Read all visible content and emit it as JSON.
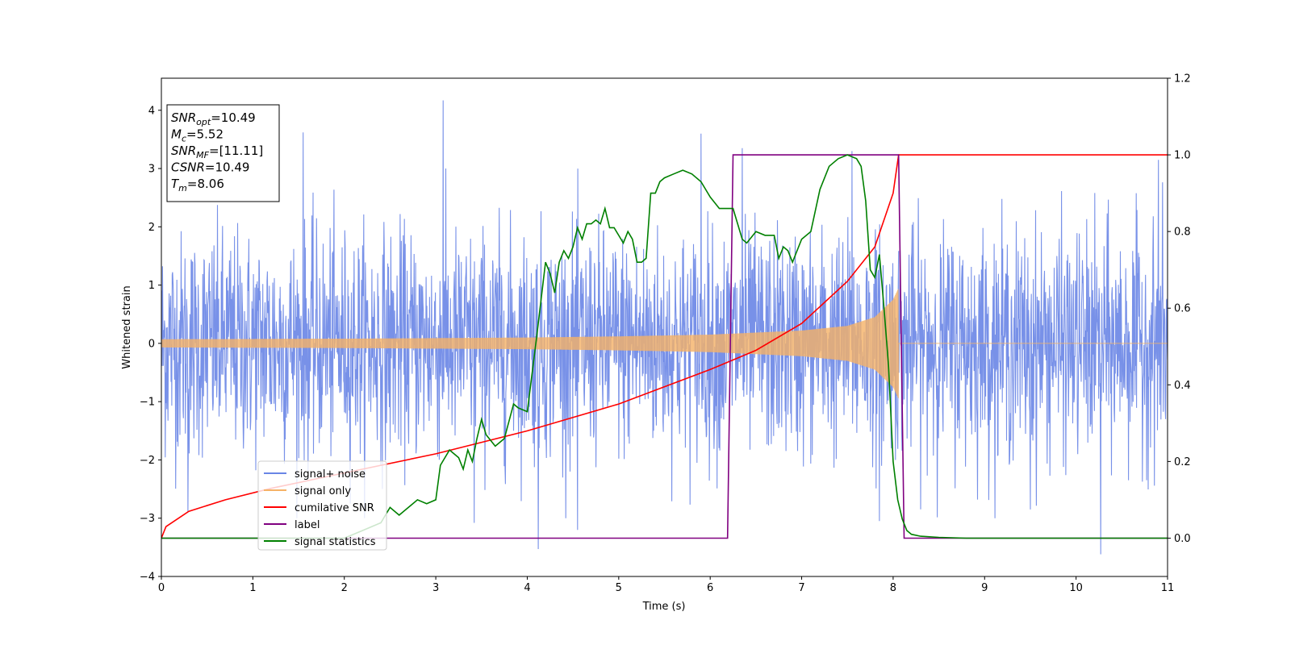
{
  "chart_data": {
    "type": "line",
    "xlabel": "Time (s)",
    "ylabel": "Whitened strain",
    "y2label": "",
    "xlim": [
      0,
      11
    ],
    "ylim": [
      -4,
      4.55
    ],
    "y2lim": [
      -0.1,
      1.2
    ],
    "x_ticks": [
      "0",
      "1",
      "2",
      "3",
      "4",
      "5",
      "6",
      "7",
      "8",
      "9",
      "10",
      "11"
    ],
    "y_ticks": [
      "−4",
      "−3",
      "−2",
      "−1",
      "0",
      "1",
      "2",
      "3",
      "4"
    ],
    "y2_ticks": [
      "0.0",
      "0.2",
      "0.4",
      "0.6",
      "0.8",
      "1.0",
      "1.2"
    ],
    "grid": false,
    "legend_placement": "lower-left",
    "info_box": [
      {
        "name": "SNR",
        "sub": "opt",
        "value": "=10.49"
      },
      {
        "name": "M",
        "sub": "c",
        "value": "=5.52"
      },
      {
        "name": "SNR",
        "sub": "MF",
        "value": "=[11.11]"
      },
      {
        "name": "CSNR",
        "sub": "",
        "value": "=10.49"
      },
      {
        "name": "T",
        "sub": "m",
        "value": "=8.06"
      }
    ],
    "series": [
      {
        "name": "signal+ noise",
        "color": "#6985e6",
        "axis": "left",
        "description": "noise band roughly between -2 and 2 with spikes",
        "spikes": [
          [
            3.08,
            4.17
          ],
          [
            1.55,
            3.62
          ],
          [
            5.9,
            3.6
          ],
          [
            6.35,
            3.35
          ],
          [
            7.55,
            3.3
          ],
          [
            10.9,
            3.15
          ],
          [
            4.12,
            -3.53
          ],
          [
            10.27,
            -3.62
          ],
          [
            4.55,
            -3.2
          ],
          [
            3.42,
            -3.08
          ],
          [
            0.29,
            -2.9
          ],
          [
            7.85,
            -3.05
          ],
          [
            9.5,
            -2.85
          ]
        ]
      },
      {
        "name": "signal only",
        "color": "#f5b266",
        "axis": "left",
        "description": "chirp with growing amplitude until merger at 8.06 s",
        "envelope": [
          [
            0,
            0.07
          ],
          [
            2,
            0.08
          ],
          [
            4,
            0.1
          ],
          [
            5,
            0.12
          ],
          [
            6,
            0.15
          ],
          [
            7,
            0.22
          ],
          [
            7.5,
            0.3
          ],
          [
            7.8,
            0.45
          ],
          [
            8.0,
            0.75
          ],
          [
            8.06,
            0.95
          ]
        ]
      },
      {
        "name": "cumilative SNR",
        "color": "#ff0000",
        "axis": "right",
        "x": [
          0,
          0.05,
          0.3,
          0.7,
          1.2,
          2,
          3,
          4,
          5,
          6,
          6.5,
          7,
          7.5,
          7.8,
          8.0,
          8.06,
          11
        ],
        "y": [
          0.0,
          0.03,
          0.07,
          0.1,
          0.13,
          0.17,
          0.22,
          0.28,
          0.35,
          0.44,
          0.49,
          0.56,
          0.67,
          0.76,
          0.9,
          1.0,
          1.0
        ]
      },
      {
        "name": "label",
        "color": "#800080",
        "axis": "right",
        "x": [
          0,
          6.19,
          6.25,
          8.06,
          8.12,
          11
        ],
        "y": [
          0,
          0,
          1,
          1,
          0,
          0
        ]
      },
      {
        "name": "signal statistics",
        "color": "#008000",
        "axis": "right",
        "x": [
          0,
          2.0,
          2.2,
          2.4,
          2.45,
          2.5,
          2.6,
          2.7,
          2.8,
          2.9,
          3.0,
          3.05,
          3.15,
          3.25,
          3.3,
          3.35,
          3.4,
          3.45,
          3.5,
          3.55,
          3.65,
          3.75,
          3.85,
          3.9,
          4.0,
          4.1,
          4.2,
          4.25,
          4.3,
          4.35,
          4.4,
          4.45,
          4.5,
          4.55,
          4.6,
          4.65,
          4.7,
          4.75,
          4.8,
          4.85,
          4.9,
          4.95,
          5.0,
          5.05,
          5.1,
          5.15,
          5.2,
          5.25,
          5.3,
          5.35,
          5.4,
          5.45,
          5.5,
          5.6,
          5.7,
          5.8,
          5.9,
          6.0,
          6.1,
          6.2,
          6.25,
          6.3,
          6.35,
          6.4,
          6.5,
          6.6,
          6.7,
          6.75,
          6.8,
          6.85,
          6.9,
          7.0,
          7.1,
          7.2,
          7.3,
          7.4,
          7.5,
          7.6,
          7.65,
          7.7,
          7.75,
          7.8,
          7.85,
          7.9,
          7.95,
          8.0,
          8.05,
          8.1,
          8.15,
          8.2,
          8.3,
          8.5,
          8.8,
          11
        ],
        "y": [
          0.0,
          0.0,
          0.02,
          0.04,
          0.06,
          0.08,
          0.06,
          0.08,
          0.1,
          0.09,
          0.1,
          0.19,
          0.23,
          0.21,
          0.18,
          0.23,
          0.2,
          0.26,
          0.31,
          0.27,
          0.24,
          0.26,
          0.35,
          0.34,
          0.33,
          0.52,
          0.72,
          0.69,
          0.64,
          0.72,
          0.75,
          0.73,
          0.76,
          0.81,
          0.78,
          0.82,
          0.82,
          0.83,
          0.82,
          0.86,
          0.81,
          0.81,
          0.79,
          0.77,
          0.8,
          0.78,
          0.72,
          0.72,
          0.73,
          0.9,
          0.9,
          0.93,
          0.94,
          0.95,
          0.96,
          0.95,
          0.93,
          0.89,
          0.86,
          0.86,
          0.86,
          0.82,
          0.78,
          0.77,
          0.8,
          0.79,
          0.79,
          0.73,
          0.76,
          0.75,
          0.72,
          0.78,
          0.8,
          0.91,
          0.97,
          0.99,
          1.0,
          0.99,
          0.97,
          0.88,
          0.7,
          0.68,
          0.74,
          0.6,
          0.45,
          0.2,
          0.1,
          0.05,
          0.02,
          0.01,
          0.005,
          0.002,
          0.0,
          0.0
        ]
      }
    ]
  }
}
